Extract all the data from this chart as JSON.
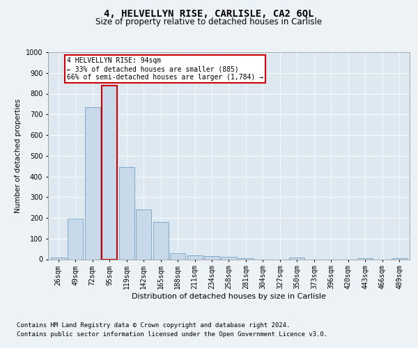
{
  "title1": "4, HELVELLYN RISE, CARLISLE, CA2 6QL",
  "title2": "Size of property relative to detached houses in Carlisle",
  "xlabel": "Distribution of detached houses by size in Carlisle",
  "ylabel": "Number of detached properties",
  "categories": [
    "26sqm",
    "49sqm",
    "72sqm",
    "95sqm",
    "119sqm",
    "142sqm",
    "165sqm",
    "188sqm",
    "211sqm",
    "234sqm",
    "258sqm",
    "281sqm",
    "304sqm",
    "327sqm",
    "350sqm",
    "373sqm",
    "396sqm",
    "420sqm",
    "443sqm",
    "466sqm",
    "489sqm"
  ],
  "values": [
    10,
    195,
    735,
    840,
    445,
    240,
    180,
    30,
    17,
    15,
    12,
    5,
    0,
    0,
    7,
    0,
    0,
    0,
    5,
    0,
    5
  ],
  "bar_color": "#c8d9ea",
  "bar_edge_color": "#7fa8c8",
  "highlight_bar_index": 3,
  "highlight_bar_edge_color": "#cc0000",
  "annotation_text": "4 HELVELLYN RISE: 94sqm\n← 33% of detached houses are smaller (885)\n66% of semi-detached houses are larger (1,784) →",
  "annotation_box_color": "#ffffff",
  "annotation_box_edge_color": "#cc0000",
  "footer1": "Contains HM Land Registry data © Crown copyright and database right 2024.",
  "footer2": "Contains public sector information licensed under the Open Government Licence v3.0.",
  "bg_color": "#edf2f7",
  "plot_bg_color": "#dde8f0",
  "ylim": [
    0,
    1000
  ],
  "yticks": [
    0,
    100,
    200,
    300,
    400,
    500,
    600,
    700,
    800,
    900,
    1000
  ],
  "title1_fontsize": 10,
  "title2_fontsize": 8.5,
  "xlabel_fontsize": 8,
  "ylabel_fontsize": 7.5,
  "tick_fontsize": 7,
  "footer_fontsize": 6.5
}
